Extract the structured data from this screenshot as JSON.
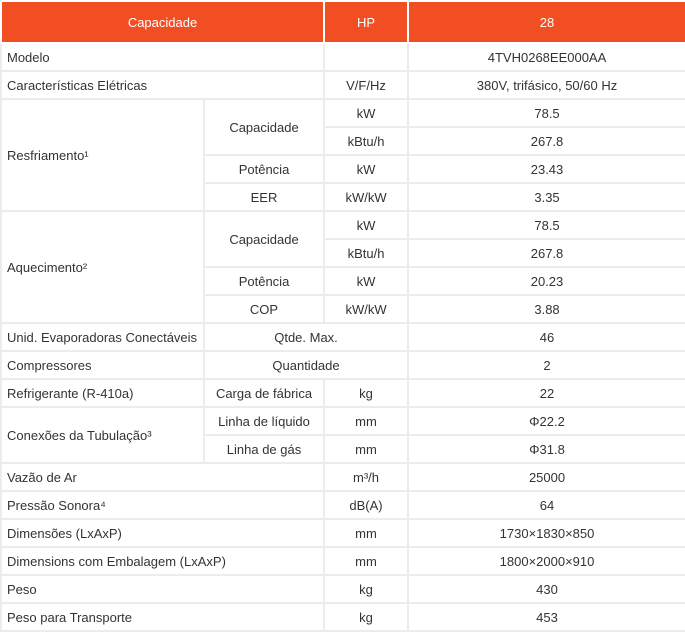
{
  "header": [
    "Capacidade",
    "HP",
    "28"
  ],
  "rows": [
    [
      "Modelo",
      "4TVH0268EE000AA"
    ],
    [
      "Características Elétricas",
      "V/F/Hz",
      "380V, trifásico, 50/60 Hz"
    ],
    [
      "Resfriamento¹",
      "Capacidade",
      "kW",
      "78.5"
    ],
    [
      "kBtu/h",
      "267.8"
    ],
    [
      "Potência",
      "kW",
      "23.43"
    ],
    [
      "EER",
      "kW/kW",
      "3.35"
    ],
    [
      "Aquecimento²",
      "Capacidade",
      "kW",
      "78.5"
    ],
    [
      "kBtu/h",
      "267.8"
    ],
    [
      "Potência",
      "kW",
      "20.23"
    ],
    [
      "COP",
      "kW/kW",
      "3.88"
    ],
    [
      "Unid. Evaporadoras Conectáveis",
      "Qtde. Max.",
      "46"
    ],
    [
      "Compressores",
      "Quantidade",
      "2"
    ],
    [
      "Refrigerante (R-410a)",
      "Carga de fábrica",
      "kg",
      "22"
    ],
    [
      "Conexões da Tubulação³",
      "Linha de líquido",
      "mm",
      "Φ22.2"
    ],
    [
      "Linha de gás",
      "mm",
      "Φ31.8"
    ],
    [
      "Vazão de Ar",
      "m³/h",
      "25000"
    ],
    [
      "Pressão Sonora⁴",
      "dB(A)",
      "64"
    ],
    [
      "Dimensões (LxAxP)",
      "mm",
      "1730×1830×850"
    ],
    [
      "Dimensions com Embalagem (LxAxP)",
      "mm",
      "1800×2000×910"
    ],
    [
      "Peso",
      "kg",
      "430"
    ],
    [
      "Peso para Transporte",
      "kg",
      "453"
    ]
  ]
}
